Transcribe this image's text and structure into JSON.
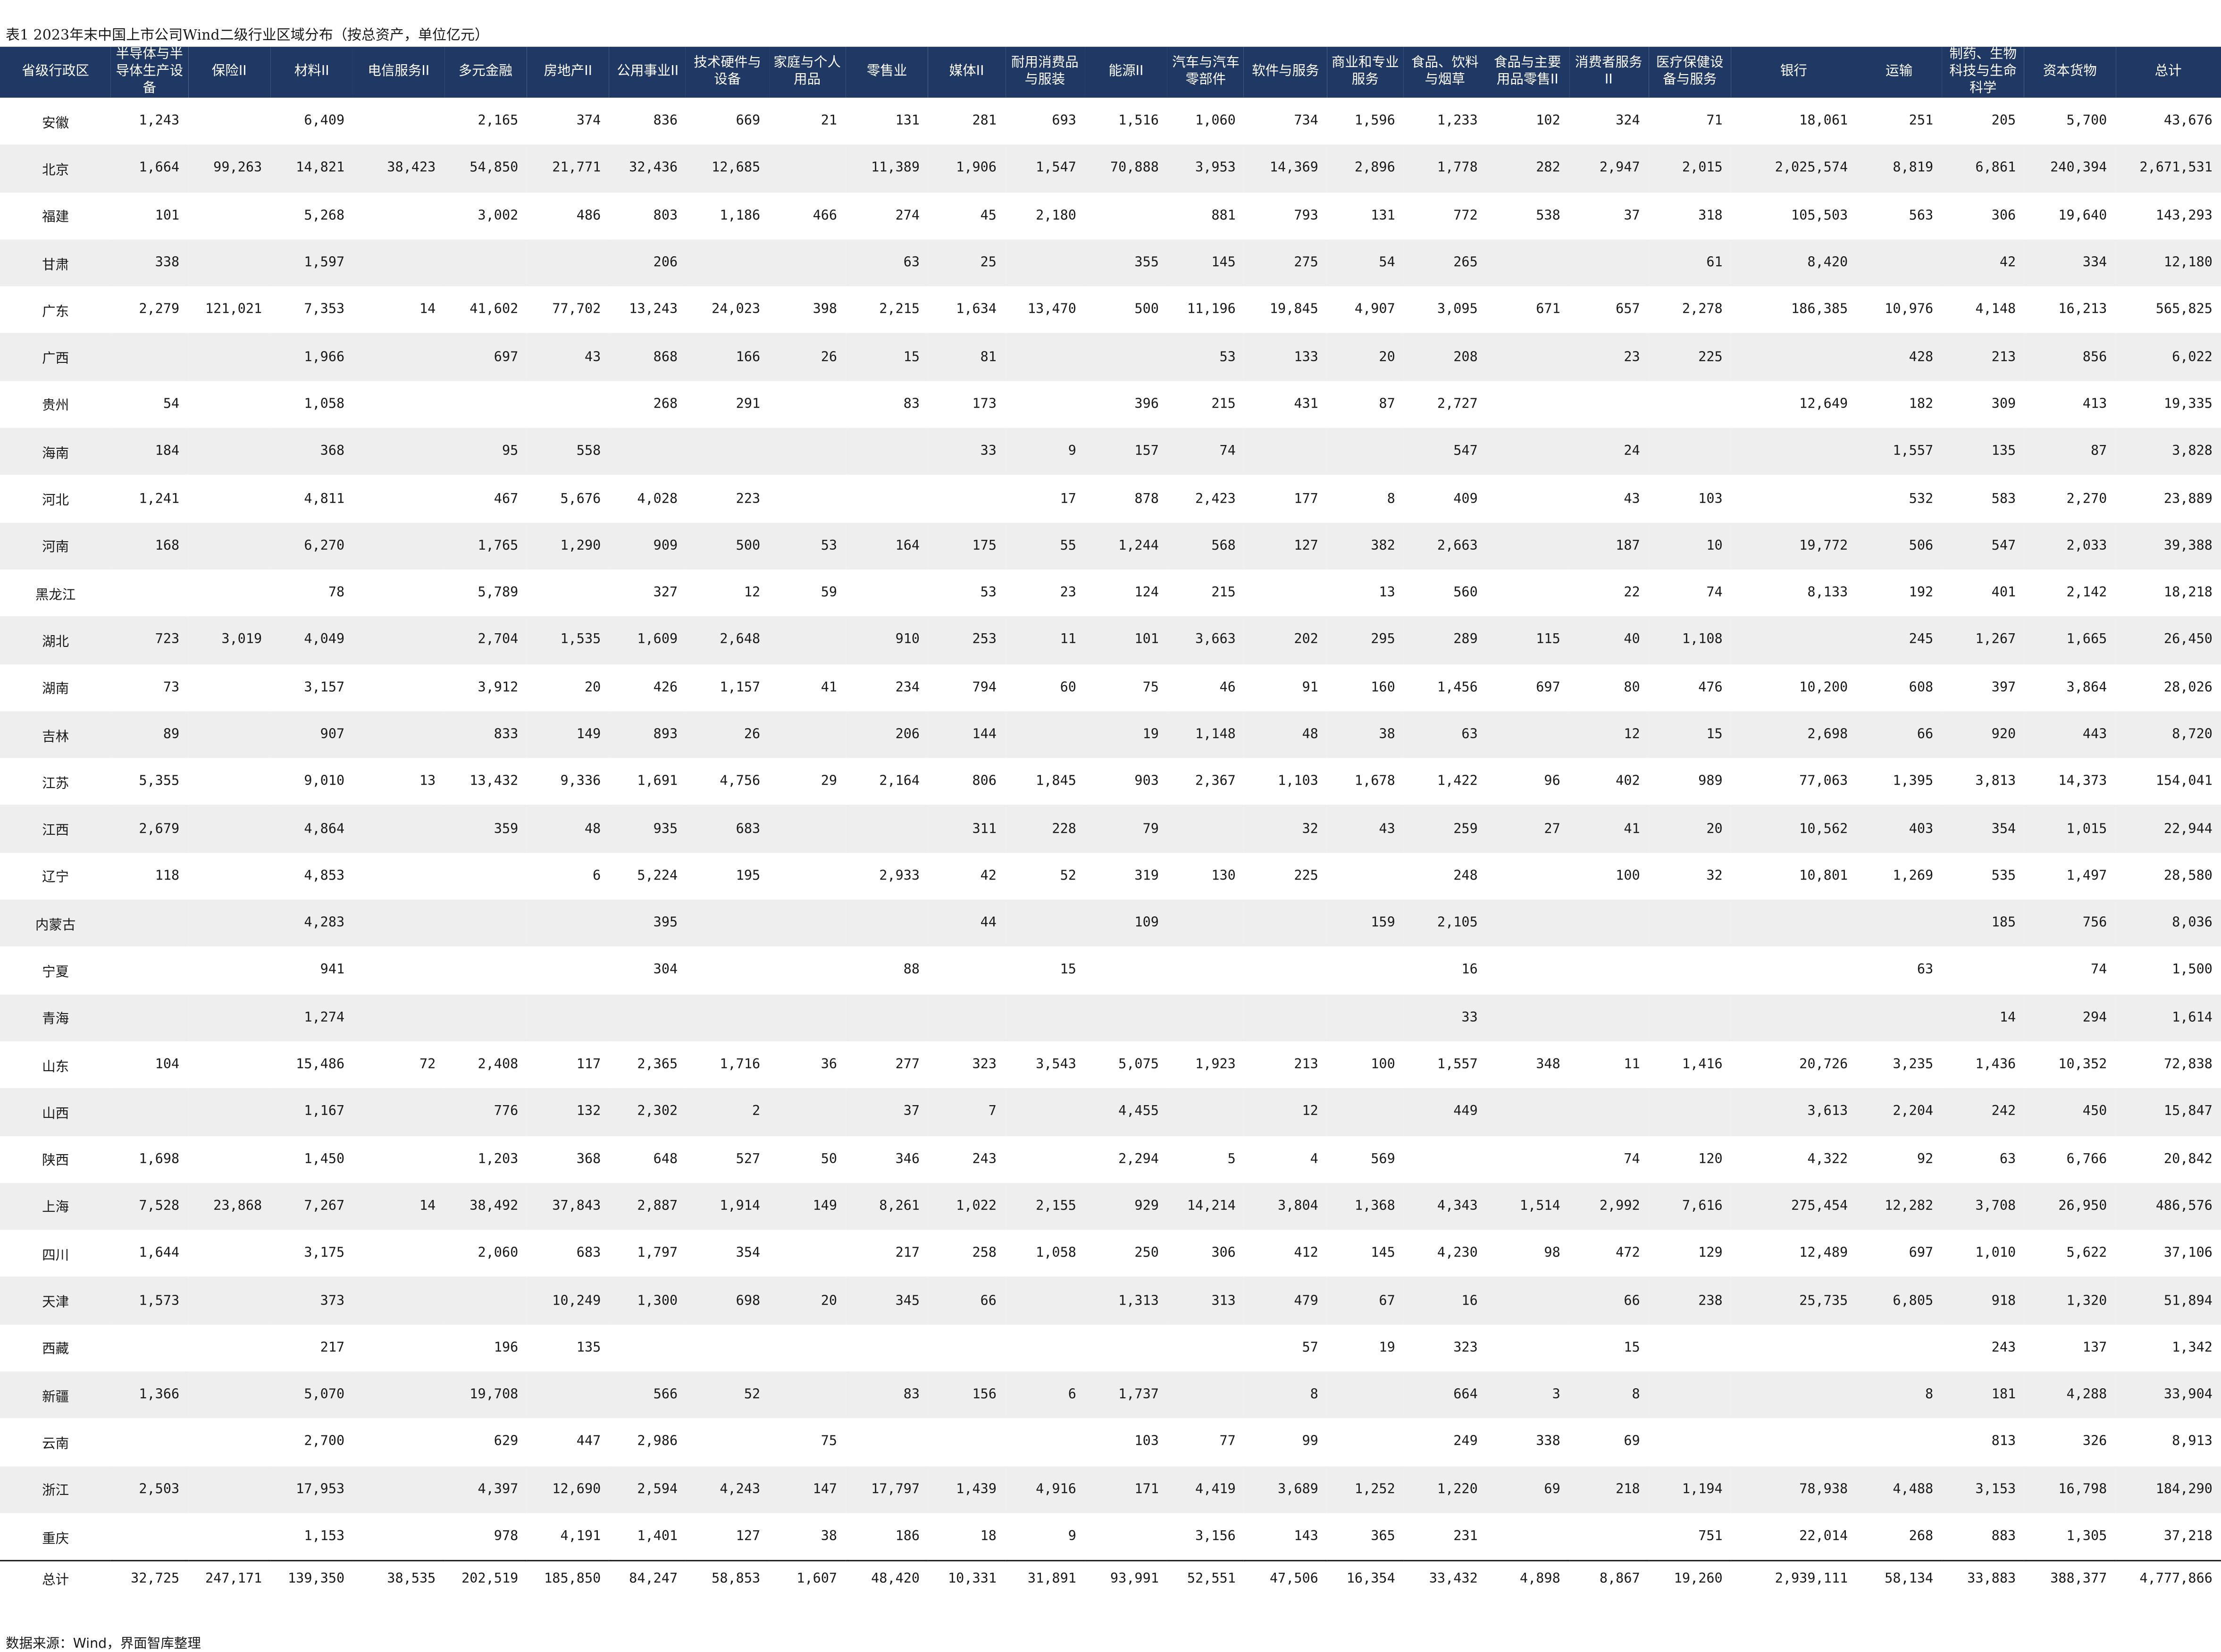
{
  "title": "表1 2023年末中国上市公司Wind二级行业区域分布（按总资产，单位亿元）",
  "columns": [
    "省级行政区",
    "半导体与半导体生产设备",
    "保险II",
    "材料II",
    "电信服务II",
    "多元金融",
    "房地产II",
    "公用事业II",
    "技术硬件与设备",
    "家庭与个人用品",
    "零售业",
    "媒体II",
    "耐用消费品与服装",
    "能源II",
    "汽车与汽车零部件",
    "软件与服务",
    "商业和专业服务",
    "食品、饮料与烟草",
    "食品与主要用品零售II",
    "消费者服务II",
    "医疗保健设备与服务",
    "银行",
    "运输",
    "制药、生物科技与生命科学",
    "资本货物",
    "总计"
  ],
  "rows": [
    [
      "安徽",
      "1,243",
      "",
      "6,409",
      "",
      "2,165",
      "374",
      "836",
      "669",
      "21",
      "131",
      "281",
      "693",
      "1,516",
      "1,060",
      "734",
      "1,596",
      "1,233",
      "102",
      "324",
      "71",
      "18,061",
      "251",
      "205",
      "5,700",
      "43,676"
    ],
    [
      "北京",
      "1,664",
      "99,263",
      "14,821",
      "38,423",
      "54,850",
      "21,771",
      "32,436",
      "12,685",
      "",
      "11,389",
      "1,906",
      "1,547",
      "70,888",
      "3,953",
      "14,369",
      "2,896",
      "1,778",
      "282",
      "2,947",
      "2,015",
      "2,025,574",
      "8,819",
      "6,861",
      "240,394",
      "2,671,531"
    ],
    [
      "福建",
      "101",
      "",
      "5,268",
      "",
      "3,002",
      "486",
      "803",
      "1,186",
      "466",
      "274",
      "45",
      "2,180",
      "",
      "881",
      "793",
      "131",
      "772",
      "538",
      "37",
      "318",
      "105,503",
      "563",
      "306",
      "19,640",
      "143,293"
    ],
    [
      "甘肃",
      "338",
      "",
      "1,597",
      "",
      "",
      "",
      "206",
      "",
      "",
      "63",
      "25",
      "",
      "355",
      "145",
      "275",
      "54",
      "265",
      "",
      "",
      "61",
      "8,420",
      "",
      "42",
      "334",
      "12,180"
    ],
    [
      "广东",
      "2,279",
      "121,021",
      "7,353",
      "14",
      "41,602",
      "77,702",
      "13,243",
      "24,023",
      "398",
      "2,215",
      "1,634",
      "13,470",
      "500",
      "11,196",
      "19,845",
      "4,907",
      "3,095",
      "671",
      "657",
      "2,278",
      "186,385",
      "10,976",
      "4,148",
      "16,213",
      "565,825"
    ],
    [
      "广西",
      "",
      "",
      "1,966",
      "",
      "697",
      "43",
      "868",
      "166",
      "26",
      "15",
      "81",
      "",
      "",
      "53",
      "133",
      "20",
      "208",
      "",
      "23",
      "225",
      "",
      "428",
      "213",
      "856",
      "6,022"
    ],
    [
      "贵州",
      "54",
      "",
      "1,058",
      "",
      "",
      "",
      "268",
      "291",
      "",
      "83",
      "173",
      "",
      "396",
      "215",
      "431",
      "87",
      "2,727",
      "",
      "",
      "",
      "12,649",
      "182",
      "309",
      "413",
      "19,335"
    ],
    [
      "海南",
      "184",
      "",
      "368",
      "",
      "95",
      "558",
      "",
      "",
      "",
      "",
      "33",
      "9",
      "157",
      "74",
      "",
      "",
      "547",
      "",
      "24",
      "",
      "",
      "1,557",
      "135",
      "87",
      "3,828"
    ],
    [
      "河北",
      "1,241",
      "",
      "4,811",
      "",
      "467",
      "5,676",
      "4,028",
      "223",
      "",
      "",
      "",
      "17",
      "878",
      "2,423",
      "177",
      "8",
      "409",
      "",
      "43",
      "103",
      "",
      "532",
      "583",
      "2,270",
      "23,889"
    ],
    [
      "河南",
      "168",
      "",
      "6,270",
      "",
      "1,765",
      "1,290",
      "909",
      "500",
      "53",
      "164",
      "175",
      "55",
      "1,244",
      "568",
      "127",
      "382",
      "2,663",
      "",
      "187",
      "10",
      "19,772",
      "506",
      "547",
      "2,033",
      "39,388"
    ],
    [
      "黑龙江",
      "",
      "",
      "78",
      "",
      "5,789",
      "",
      "327",
      "12",
      "59",
      "",
      "53",
      "23",
      "124",
      "215",
      "",
      "13",
      "560",
      "",
      "22",
      "74",
      "8,133",
      "192",
      "401",
      "2,142",
      "18,218"
    ],
    [
      "湖北",
      "723",
      "3,019",
      "4,049",
      "",
      "2,704",
      "1,535",
      "1,609",
      "2,648",
      "",
      "910",
      "253",
      "11",
      "101",
      "3,663",
      "202",
      "295",
      "289",
      "115",
      "40",
      "1,108",
      "",
      "245",
      "1,267",
      "1,665",
      "26,450"
    ],
    [
      "湖南",
      "73",
      "",
      "3,157",
      "",
      "3,912",
      "20",
      "426",
      "1,157",
      "41",
      "234",
      "794",
      "60",
      "75",
      "46",
      "91",
      "160",
      "1,456",
      "697",
      "80",
      "476",
      "10,200",
      "608",
      "397",
      "3,864",
      "28,026"
    ],
    [
      "吉林",
      "89",
      "",
      "907",
      "",
      "833",
      "149",
      "893",
      "26",
      "",
      "206",
      "144",
      "",
      "19",
      "1,148",
      "48",
      "38",
      "63",
      "",
      "12",
      "15",
      "2,698",
      "66",
      "920",
      "443",
      "8,720"
    ],
    [
      "江苏",
      "5,355",
      "",
      "9,010",
      "13",
      "13,432",
      "9,336",
      "1,691",
      "4,756",
      "29",
      "2,164",
      "806",
      "1,845",
      "903",
      "2,367",
      "1,103",
      "1,678",
      "1,422",
      "96",
      "402",
      "989",
      "77,063",
      "1,395",
      "3,813",
      "14,373",
      "154,041"
    ],
    [
      "江西",
      "2,679",
      "",
      "4,864",
      "",
      "359",
      "48",
      "935",
      "683",
      "",
      "",
      "311",
      "228",
      "79",
      "",
      "32",
      "43",
      "259",
      "27",
      "41",
      "20",
      "10,562",
      "403",
      "354",
      "1,015",
      "22,944"
    ],
    [
      "辽宁",
      "118",
      "",
      "4,853",
      "",
      "",
      "6",
      "5,224",
      "195",
      "",
      "2,933",
      "42",
      "52",
      "319",
      "130",
      "225",
      "",
      "248",
      "",
      "100",
      "32",
      "10,801",
      "1,269",
      "535",
      "1,497",
      "28,580"
    ],
    [
      "内蒙古",
      "",
      "",
      "4,283",
      "",
      "",
      "",
      "395",
      "",
      "",
      "",
      "44",
      "",
      "109",
      "",
      "",
      "159",
      "2,105",
      "",
      "",
      "",
      "",
      "",
      "185",
      "756",
      "8,036"
    ],
    [
      "宁夏",
      "",
      "",
      "941",
      "",
      "",
      "",
      "304",
      "",
      "",
      "88",
      "",
      "15",
      "",
      "",
      "",
      "",
      "16",
      "",
      "",
      "",
      "",
      "63",
      "",
      "74",
      "1,500"
    ],
    [
      "青海",
      "",
      "",
      "1,274",
      "",
      "",
      "",
      "",
      "",
      "",
      "",
      "",
      "",
      "",
      "",
      "",
      "",
      "33",
      "",
      "",
      "",
      "",
      "",
      "14",
      "294",
      "1,614"
    ],
    [
      "山东",
      "104",
      "",
      "15,486",
      "72",
      "2,408",
      "117",
      "2,365",
      "1,716",
      "36",
      "277",
      "323",
      "3,543",
      "5,075",
      "1,923",
      "213",
      "100",
      "1,557",
      "348",
      "11",
      "1,416",
      "20,726",
      "3,235",
      "1,436",
      "10,352",
      "72,838"
    ],
    [
      "山西",
      "",
      "",
      "1,167",
      "",
      "776",
      "132",
      "2,302",
      "2",
      "",
      "37",
      "7",
      "",
      "4,455",
      "",
      "12",
      "",
      "449",
      "",
      "",
      "",
      "3,613",
      "2,204",
      "242",
      "450",
      "15,847"
    ],
    [
      "陕西",
      "1,698",
      "",
      "1,450",
      "",
      "1,203",
      "368",
      "648",
      "527",
      "50",
      "346",
      "243",
      "",
      "2,294",
      "5",
      "4",
      "569",
      "",
      "",
      "74",
      "120",
      "4,322",
      "92",
      "63",
      "6,766",
      "20,842"
    ],
    [
      "上海",
      "7,528",
      "23,868",
      "7,267",
      "14",
      "38,492",
      "37,843",
      "2,887",
      "1,914",
      "149",
      "8,261",
      "1,022",
      "2,155",
      "929",
      "14,214",
      "3,804",
      "1,368",
      "4,343",
      "1,514",
      "2,992",
      "7,616",
      "275,454",
      "12,282",
      "3,708",
      "26,950",
      "486,576"
    ],
    [
      "四川",
      "1,644",
      "",
      "3,175",
      "",
      "2,060",
      "683",
      "1,797",
      "354",
      "",
      "217",
      "258",
      "1,058",
      "250",
      "306",
      "412",
      "145",
      "4,230",
      "98",
      "472",
      "129",
      "12,489",
      "697",
      "1,010",
      "5,622",
      "37,106"
    ],
    [
      "天津",
      "1,573",
      "",
      "373",
      "",
      "",
      "10,249",
      "1,300",
      "698",
      "20",
      "345",
      "66",
      "",
      "1,313",
      "313",
      "479",
      "67",
      "16",
      "",
      "66",
      "238",
      "25,735",
      "6,805",
      "918",
      "1,320",
      "51,894"
    ],
    [
      "西藏",
      "",
      "",
      "217",
      "",
      "196",
      "135",
      "",
      "",
      "",
      "",
      "",
      "",
      "",
      "",
      "57",
      "19",
      "323",
      "",
      "15",
      "",
      "",
      "",
      "243",
      "137",
      "1,342"
    ],
    [
      "新疆",
      "1,366",
      "",
      "5,070",
      "",
      "19,708",
      "",
      "566",
      "52",
      "",
      "83",
      "156",
      "6",
      "1,737",
      "",
      "8",
      "",
      "664",
      "3",
      "8",
      "",
      "",
      "8",
      "181",
      "4,288",
      "33,904"
    ],
    [
      "云南",
      "",
      "",
      "2,700",
      "",
      "629",
      "447",
      "2,986",
      "",
      "75",
      "",
      "",
      "",
      "103",
      "77",
      "99",
      "",
      "249",
      "338",
      "69",
      "",
      "",
      "",
      "813",
      "326",
      "8,913"
    ],
    [
      "浙江",
      "2,503",
      "",
      "17,953",
      "",
      "4,397",
      "12,690",
      "2,594",
      "4,243",
      "147",
      "17,797",
      "1,439",
      "4,916",
      "171",
      "4,419",
      "3,689",
      "1,252",
      "1,220",
      "69",
      "218",
      "1,194",
      "78,938",
      "4,488",
      "3,153",
      "16,798",
      "184,290"
    ],
    [
      "重庆",
      "",
      "",
      "1,153",
      "",
      "978",
      "4,191",
      "1,401",
      "127",
      "38",
      "186",
      "18",
      "9",
      "",
      "3,156",
      "143",
      "365",
      "231",
      "",
      "",
      "751",
      "22,014",
      "268",
      "883",
      "1,305",
      "37,218"
    ]
  ],
  "total_row": [
    "总计",
    "32,725",
    "247,171",
    "139,350",
    "38,535",
    "202,519",
    "185,850",
    "84,247",
    "58,853",
    "1,607",
    "48,420",
    "10,331",
    "31,891",
    "93,991",
    "52,551",
    "47,506",
    "16,354",
    "33,432",
    "4,898",
    "8,867",
    "19,260",
    "2,939,111",
    "58,134",
    "33,883",
    "388,377",
    "4,777,866"
  ],
  "source": "数据来源：Wind，界面智库整理",
  "colors": {
    "header_bg": "#1f3864",
    "stripe": "#eeeeee"
  }
}
